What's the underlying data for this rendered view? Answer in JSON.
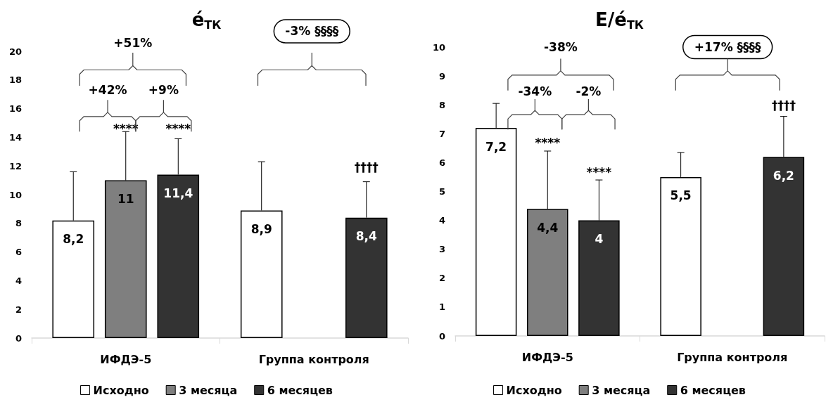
{
  "chart_data": [
    {
      "type": "bar",
      "title": "é$_{ТК}$",
      "categories": [
        "ИФДЭ-5",
        "Группа контроля"
      ],
      "series": [
        {
          "name": "Исходно",
          "color": "#ffffff",
          "values": [
            8.2,
            8.9
          ],
          "value_labels": [
            "8,2",
            "8,9"
          ],
          "errors": [
            [
              8.2,
              11.6
            ],
            [
              8.9,
              12.3
            ]
          ]
        },
        {
          "name": "3 месяца",
          "color": "#7f7f7f",
          "values": [
            11,
            null
          ],
          "value_labels": [
            "11",
            null
          ],
          "errors": [
            [
              11,
              14.4
            ],
            null
          ]
        },
        {
          "name": "6 месяцев",
          "color": "#333333",
          "values": [
            11.4,
            8.4
          ],
          "value_labels": [
            "11,4",
            "8,4"
          ],
          "errors": [
            [
              11.4,
              13.9
            ],
            [
              8.4,
              10.9
            ]
          ]
        }
      ],
      "ylim": [
        0,
        20
      ],
      "yticks": [
        0,
        2,
        4,
        6,
        8,
        10,
        12,
        14,
        16,
        18,
        20
      ],
      "grid": false,
      "legend": "bottom",
      "annotations": [
        "+51%",
        "+42%",
        "+9%",
        "****",
        "****",
        "-3% §§§§",
        "††††"
      ]
    },
    {
      "type": "bar",
      "title": "E/é$_{ТК}$",
      "categories": [
        "ИФДЭ-5",
        "Группа контроля"
      ],
      "series": [
        {
          "name": "Исходно",
          "color": "#ffffff",
          "values": [
            7.2,
            5.5
          ],
          "value_labels": [
            "7,2",
            "5,5"
          ],
          "errors": [
            [
              7.2,
              8.05
            ],
            [
              5.5,
              6.35
            ]
          ]
        },
        {
          "name": "3 месяца",
          "color": "#7f7f7f",
          "values": [
            4.4,
            null
          ],
          "value_labels": [
            "4,4",
            null
          ],
          "errors": [
            [
              4.4,
              6.4
            ],
            null
          ]
        },
        {
          "name": "6 месяцев",
          "color": "#333333",
          "values": [
            4,
            6.2
          ],
          "value_labels": [
            "4",
            "6,2"
          ],
          "errors": [
            [
              4,
              5.4
            ],
            [
              6.2,
              7.6
            ]
          ]
        }
      ],
      "ylim": [
        0,
        10
      ],
      "yticks": [
        0,
        1,
        2,
        3,
        4,
        5,
        6,
        7,
        8,
        9,
        10
      ],
      "grid": false,
      "legend": "bottom",
      "annotations": [
        "-38%",
        "-34%",
        "-2%",
        "****",
        "****",
        "+17% §§§§",
        "††††"
      ]
    }
  ]
}
